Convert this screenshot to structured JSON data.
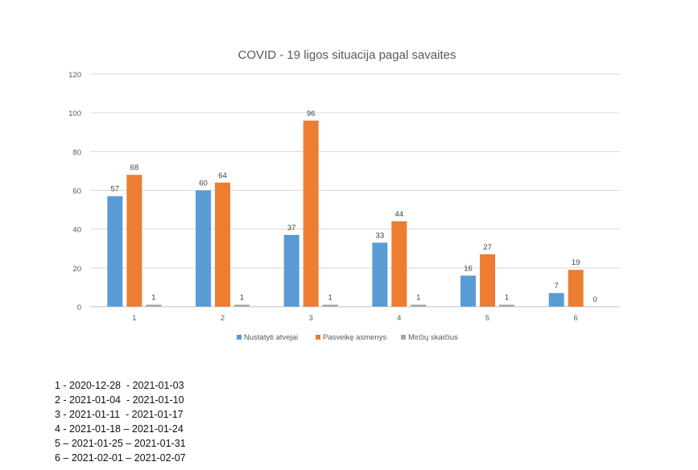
{
  "chart_data": {
    "type": "bar",
    "title": "COVID - 19 ligos situacija pagal savaites",
    "xlabel": "",
    "ylabel": "",
    "categories": [
      "1",
      "2",
      "3",
      "4",
      "5",
      "6"
    ],
    "ylim": [
      0,
      120
    ],
    "yticks": [
      0,
      20,
      40,
      60,
      80,
      100,
      120
    ],
    "grid": true,
    "legend_position": "bottom",
    "series": [
      {
        "name": "Nustatyti atvejai",
        "color": "#5b9bd5",
        "values": [
          57,
          60,
          37,
          33,
          16,
          7
        ]
      },
      {
        "name": "Pasveikę asmenys",
        "color": "#ed7d31",
        "values": [
          68,
          64,
          96,
          44,
          27,
          19
        ]
      },
      {
        "name": "Mirčių skaičius",
        "color": "#a5a5a5",
        "values": [
          1,
          1,
          1,
          1,
          1,
          0
        ]
      }
    ]
  },
  "notes": [
    "1 - 2020-12-28  - 2021-01-03",
    "2 - 2021-01-04  - 2021-01-10",
    "3 - 2021-01-11  - 2021-01-17",
    "4 - 2021-01-18 – 2021-01-24",
    "5 – 2021-01-25 – 2021-01-31",
    "6 – 2021-02-01 – 2021-02-07"
  ]
}
